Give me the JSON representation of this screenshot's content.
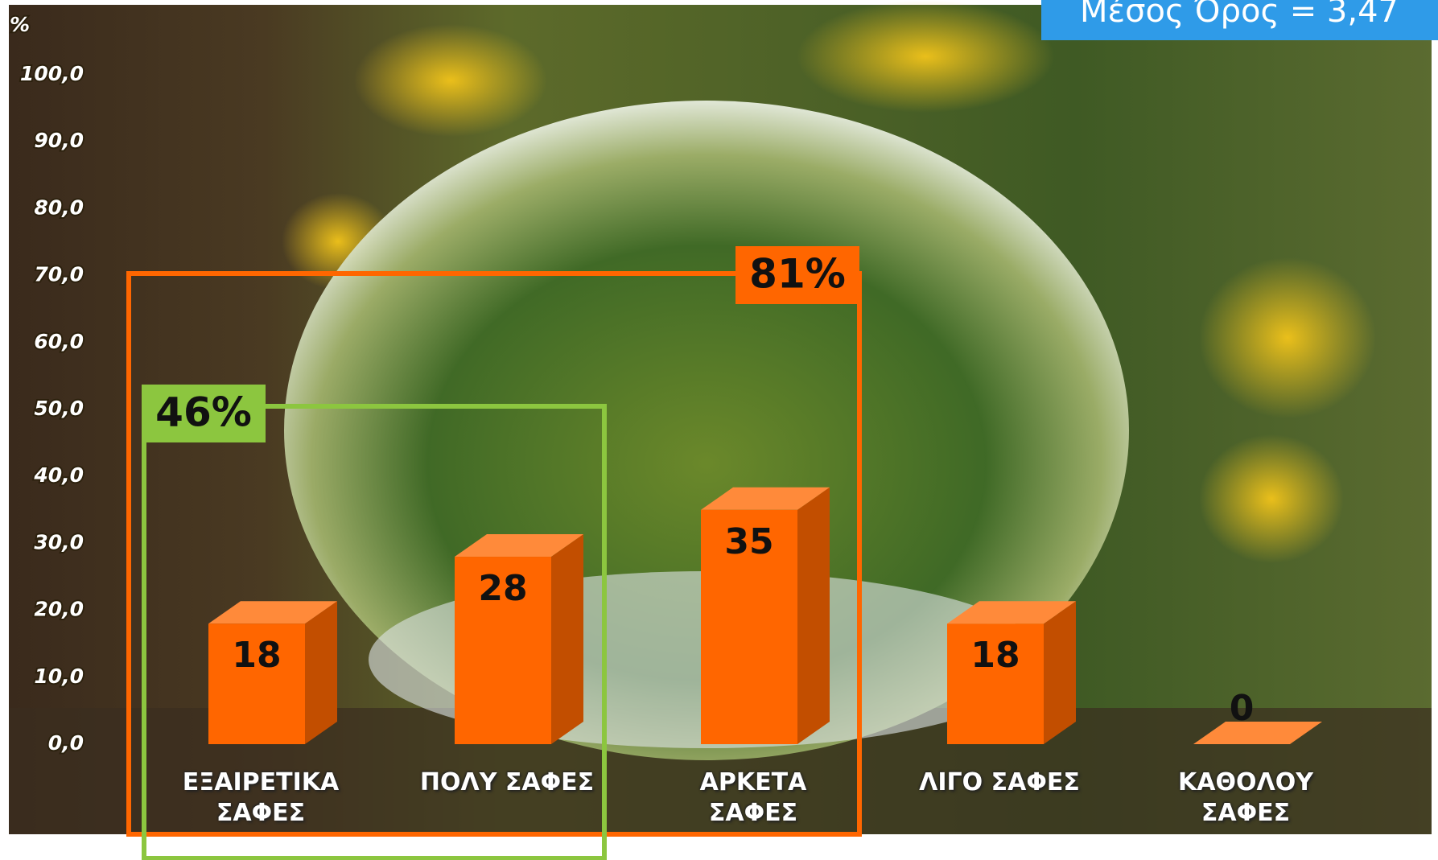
{
  "chart_data": {
    "type": "bar3d",
    "y_axis_label": "%",
    "subtitle": "Μέσος Όρος = 3,47",
    "categories": [
      "ΕΞΑΙΡΕΤΙΚΑ ΣΑΦΕΣ",
      "ΠΟΛΥ ΣΑΦΕΣ",
      "ΑΡΚΕΤΑ ΣΑΦΕΣ",
      "ΛΙΓΟ ΣΑΦΕΣ",
      "ΚΑΘΟΛΟΥ ΣΑΦΕΣ"
    ],
    "values": [
      18,
      28,
      35,
      18,
      0
    ],
    "color": "#ff6600",
    "ylim": [
      0,
      100
    ],
    "yticks": [
      {
        "value": 0,
        "label": "0,0"
      },
      {
        "value": 10,
        "label": "10,0"
      },
      {
        "value": 20,
        "label": "20,0"
      },
      {
        "value": 30,
        "label": "30,0"
      },
      {
        "value": 40,
        "label": "40,0"
      },
      {
        "value": 50,
        "label": "50,0"
      },
      {
        "value": 60,
        "label": "60,0"
      },
      {
        "value": 70,
        "label": "70,0"
      },
      {
        "value": 80,
        "label": "80,0"
      },
      {
        "value": 90,
        "label": "90,0"
      },
      {
        "value": 100,
        "label": "100,0"
      }
    ],
    "brackets": [
      {
        "value": 81,
        "label": "81%",
        "color": "#ff6600"
      },
      {
        "value": 46,
        "label": "46%",
        "color": "#8cc63f"
      }
    ]
  }
}
